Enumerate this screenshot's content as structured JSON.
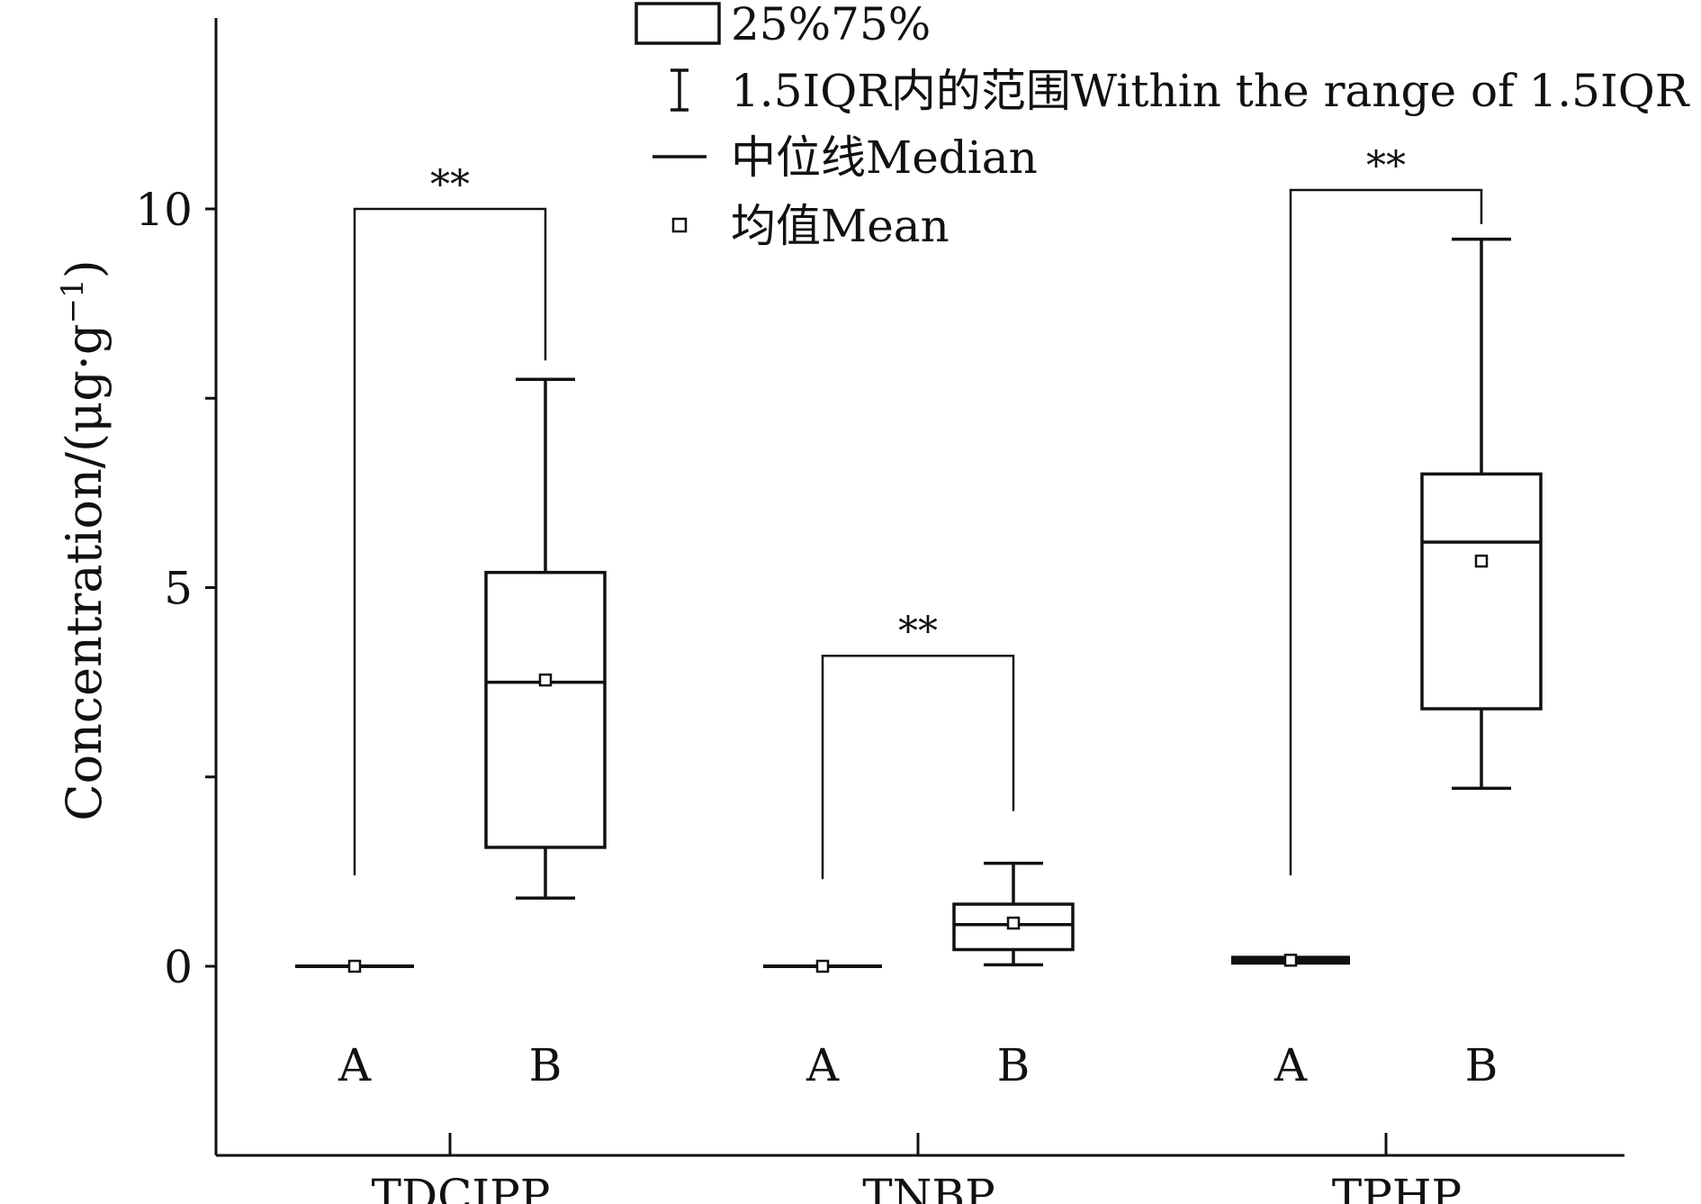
{
  "chart_data": {
    "type": "box",
    "ylabel": "Concentration/(μg·g",
    "ylabel_sup": "−1",
    "ylabel_close": ")",
    "ylim": [
      -2.5,
      12.5
    ],
    "yticks": [
      0,
      5,
      10
    ],
    "yminor": [
      2.5,
      7.5
    ],
    "groups": [
      {
        "name": "TDCIPP",
        "boxes": [
          {
            "label": "A",
            "q1": 0.0,
            "median": 0.0,
            "q3": 0.0,
            "whisker_low": 0.0,
            "whisker_high": 0.0,
            "mean": 0.0
          },
          {
            "label": "B",
            "q1": 1.57,
            "median": 3.75,
            "q3": 5.2,
            "whisker_low": 0.9,
            "whisker_high": 7.75,
            "mean": 3.78
          }
        ],
        "significance": "**"
      },
      {
        "name": "TNBP",
        "boxes": [
          {
            "label": "A",
            "q1": 0.0,
            "median": 0.0,
            "q3": 0.0,
            "whisker_low": 0.0,
            "whisker_high": 0.0,
            "mean": 0.0
          },
          {
            "label": "B",
            "q1": 0.22,
            "median": 0.55,
            "q3": 0.82,
            "whisker_low": 0.02,
            "whisker_high": 1.36,
            "mean": 0.57
          }
        ],
        "significance": "**"
      },
      {
        "name": "TPHP",
        "boxes": [
          {
            "label": "A",
            "q1": 0.05,
            "median": 0.08,
            "q3": 0.12,
            "whisker_low": 0.02,
            "whisker_high": 0.15,
            "mean": 0.08
          },
          {
            "label": "B",
            "q1": 3.4,
            "median": 5.6,
            "q3": 6.5,
            "whisker_low": 2.35,
            "whisker_high": 9.6,
            "mean": 5.35
          }
        ],
        "significance": "**"
      }
    ],
    "legend": {
      "placement": "top-center",
      "items": [
        {
          "symbol": "box",
          "label": "25%75%"
        },
        {
          "symbol": "whisker",
          "label": "1.5IQR内的范围Within the range of 1.5IQR"
        },
        {
          "symbol": "line",
          "label": "中位线Median"
        },
        {
          "symbol": "square",
          "label": "均值Mean"
        }
      ]
    }
  }
}
